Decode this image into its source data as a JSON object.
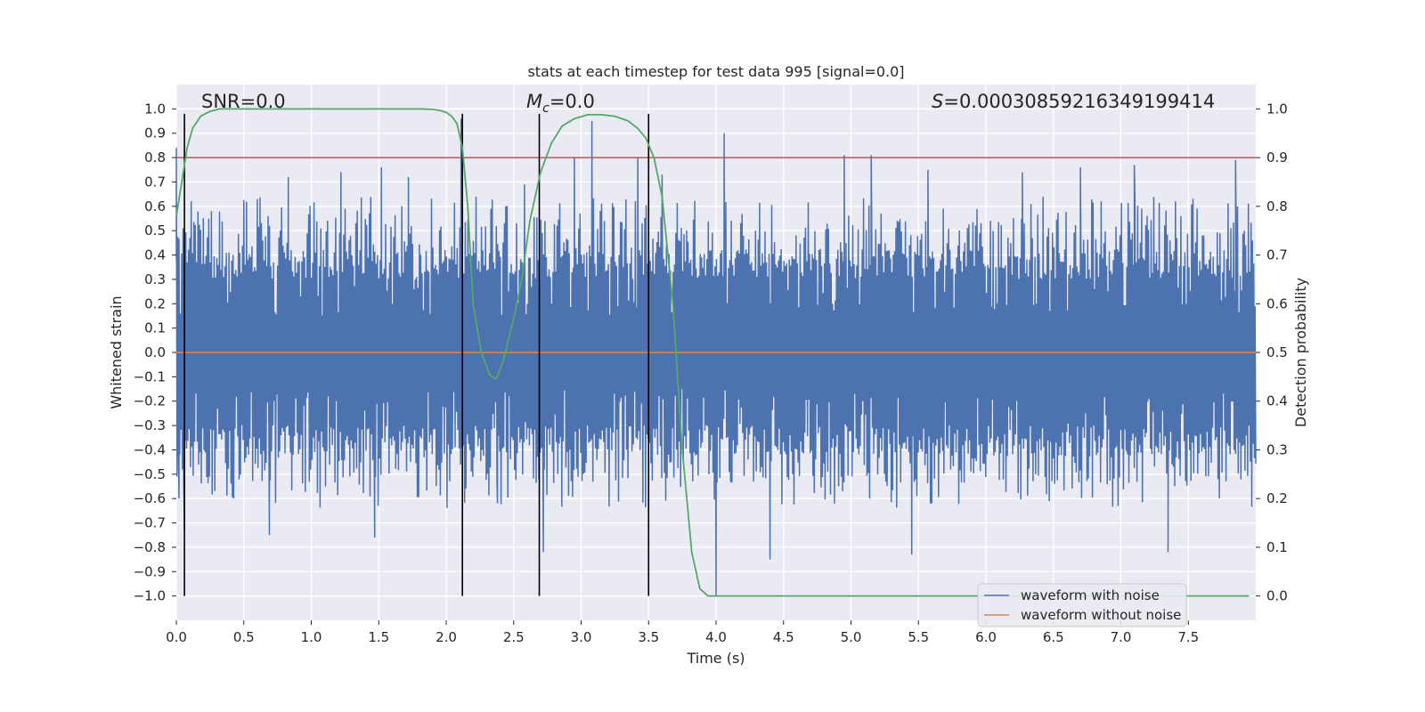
{
  "chart_data": {
    "type": "line",
    "title": "stats at each timestep for test data 995 [signal=0.0]",
    "xlabel": "Time (s)",
    "ylabel": "Whitened strain",
    "y2label": "Detection probability",
    "xlim": [
      0.0,
      8.0
    ],
    "ylim": [
      -1.1,
      1.1
    ],
    "y2lim": [
      -0.05,
      1.05
    ],
    "x_ticks": [
      0.0,
      0.5,
      1.0,
      1.5,
      2.0,
      2.5,
      3.0,
      3.5,
      4.0,
      4.5,
      5.0,
      5.5,
      6.0,
      6.5,
      7.0,
      7.5
    ],
    "x_tick_labels": [
      "0.0",
      "0.5",
      "1.0",
      "1.5",
      "2.0",
      "2.5",
      "3.0",
      "3.5",
      "4.0",
      "4.5",
      "5.0",
      "5.5",
      "6.0",
      "6.5",
      "7.0",
      "7.5"
    ],
    "y_ticks": [
      1.0,
      0.9,
      0.8,
      0.7,
      0.6,
      0.5,
      0.4,
      0.3,
      0.2,
      0.1,
      0.0,
      -0.1,
      -0.2,
      -0.3,
      -0.4,
      -0.5,
      -0.6,
      -0.7,
      -0.8,
      -0.9,
      -1.0
    ],
    "y_tick_labels": [
      "1.0",
      "0.9",
      "0.8",
      "0.7",
      "0.6",
      "0.5",
      "0.4",
      "0.3",
      "0.2",
      "0.1",
      "0.0",
      "−0.1",
      "−0.2",
      "−0.3",
      "−0.4",
      "−0.5",
      "−0.6",
      "−0.7",
      "−0.8",
      "−0.9",
      "−1.0"
    ],
    "y2_ticks": [
      1.0,
      0.9,
      0.8,
      0.7,
      0.6,
      0.5,
      0.4,
      0.3,
      0.2,
      0.1,
      0.0
    ],
    "y2_tick_labels": [
      "1.0",
      "0.9",
      "0.8",
      "0.7",
      "0.6",
      "0.5",
      "0.4",
      "0.3",
      "0.2",
      "0.1",
      "0.0"
    ],
    "annotations": {
      "snr": "SNR=0.0",
      "mc_symbol": "M",
      "mc_sub": "c",
      "mc_rest": "=0.0",
      "s_symbol": "S",
      "s_rest": "=0.00030859216349199414"
    },
    "legend": [
      "waveform with noise",
      "waveform without noise"
    ],
    "legend_position": "lower-right",
    "colors": {
      "noise": "#4c72b0",
      "clean": "#dd8452",
      "probability": "#55a868",
      "threshold": "#c44e52",
      "markers": "#000000",
      "background": "#eaeaf2",
      "grid": "#ffffff"
    },
    "threshold_probability": 0.9,
    "vertical_markers_s": [
      0.06,
      2.12,
      2.69,
      3.5
    ],
    "noise_waveform": {
      "description_free": true,
      "amplitude_band": [
        -0.4,
        0.4
      ],
      "sample_count": 1600,
      "peaks": [
        {
          "x": 0.0,
          "y": 0.84
        },
        {
          "x": 0.02,
          "y": -0.6
        },
        {
          "x": 0.06,
          "y": -0.73
        },
        {
          "x": 0.26,
          "y": 0.58
        },
        {
          "x": 0.6,
          "y": 0.63
        },
        {
          "x": 0.68,
          "y": 0.56
        },
        {
          "x": 0.69,
          "y": -0.75
        },
        {
          "x": 0.83,
          "y": 0.72
        },
        {
          "x": 1.22,
          "y": 0.74
        },
        {
          "x": 1.47,
          "y": -0.76
        },
        {
          "x": 1.52,
          "y": 0.76
        },
        {
          "x": 1.72,
          "y": 0.72
        },
        {
          "x": 2.11,
          "y": 0.96
        },
        {
          "x": 2.38,
          "y": -0.62
        },
        {
          "x": 2.58,
          "y": 0.69
        },
        {
          "x": 2.72,
          "y": -0.82
        },
        {
          "x": 2.95,
          "y": 0.8
        },
        {
          "x": 3.08,
          "y": 0.95
        },
        {
          "x": 3.42,
          "y": 0.8
        },
        {
          "x": 3.6,
          "y": 0.73
        },
        {
          "x": 4.0,
          "y": -1.0
        },
        {
          "x": 4.06,
          "y": 0.9
        },
        {
          "x": 4.4,
          "y": -0.85
        },
        {
          "x": 4.95,
          "y": 0.81
        },
        {
          "x": 5.15,
          "y": 0.81
        },
        {
          "x": 5.45,
          "y": -0.83
        },
        {
          "x": 5.57,
          "y": 0.75
        },
        {
          "x": 6.27,
          "y": 0.74
        },
        {
          "x": 6.7,
          "y": 0.76
        },
        {
          "x": 7.1,
          "y": 0.77
        },
        {
          "x": 7.35,
          "y": -0.82
        },
        {
          "x": 7.85,
          "y": 0.79
        }
      ]
    },
    "clean_waveform": {
      "x": [
        0.0,
        8.0
      ],
      "y": [
        0.0,
        0.0
      ]
    },
    "probability_series": {
      "x": [
        0.0,
        0.04,
        0.08,
        0.12,
        0.18,
        0.25,
        0.32,
        0.4,
        0.6,
        1.0,
        1.5,
        1.8,
        1.9,
        1.95,
        2.0,
        2.04,
        2.08,
        2.12,
        2.16,
        2.2,
        2.26,
        2.32,
        2.37,
        2.42,
        2.5,
        2.56,
        2.62,
        2.7,
        2.78,
        2.86,
        2.95,
        3.05,
        3.15,
        3.25,
        3.35,
        3.42,
        3.48,
        3.54,
        3.6,
        3.68,
        3.75,
        3.82,
        3.88,
        3.94,
        4.0,
        4.5,
        5.0,
        6.0,
        7.0,
        7.95
      ],
      "y": [
        0.78,
        0.85,
        0.92,
        0.96,
        0.985,
        0.995,
        1.0,
        1.0,
        1.0,
        1.0,
        1.0,
        1.0,
        0.999,
        0.997,
        0.993,
        0.985,
        0.97,
        0.92,
        0.8,
        0.6,
        0.5,
        0.455,
        0.445,
        0.48,
        0.57,
        0.65,
        0.77,
        0.87,
        0.93,
        0.965,
        0.98,
        0.988,
        0.988,
        0.985,
        0.975,
        0.96,
        0.94,
        0.9,
        0.82,
        0.6,
        0.3,
        0.09,
        0.015,
        0.0,
        0.0,
        0.0,
        0.0,
        0.0,
        0.0,
        0.0
      ]
    }
  }
}
